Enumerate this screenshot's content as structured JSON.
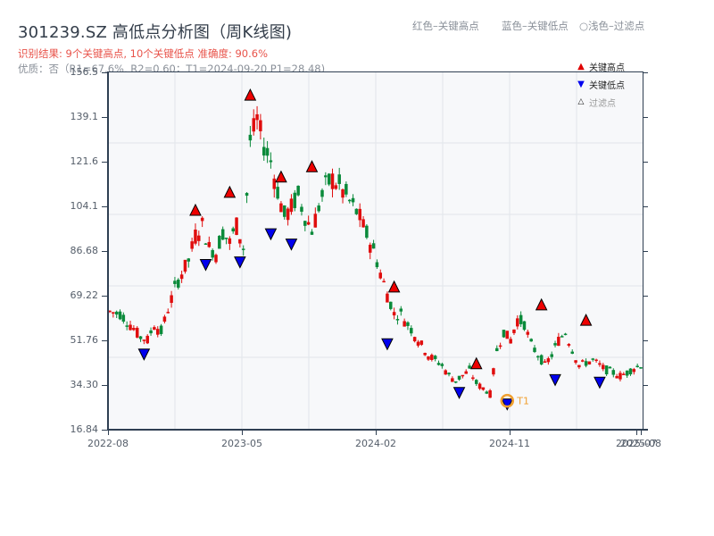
{
  "header": {
    "title": "301239.SZ 高低点分析图（周K线图)",
    "result_line": "识别结果: 9个关键高点, 10个关键低点  准确度: 90.6%",
    "quality_line": "优质：否（R1=67.6%, R2=0.60；T1=2024-09-20 P1=28.48)"
  },
  "top_legend": {
    "red": "红色–关键高点",
    "blue": "蓝色–关键低点",
    "light": "○浅色–过滤点"
  },
  "legend": {
    "items": [
      {
        "label": "关键高点",
        "symbol": "▲",
        "color": "#e00000"
      },
      {
        "label": "关键低点",
        "symbol": "▼",
        "color": "#0000ee"
      },
      {
        "label": "过滤点",
        "symbol": "△",
        "color": "#f4c0c0"
      }
    ]
  },
  "annotation": {
    "label": "T1",
    "color": "#f0a030"
  },
  "colors": {
    "up": "#e00d0d",
    "down": "#0a8a3a",
    "grid": "#e2e5ea",
    "axis": "#2f3f52",
    "plot_bg": "#f7f8fa"
  },
  "chart_data": {
    "type": "candlestick",
    "title": "301239.SZ 高低点分析图（周K线图)",
    "xlabel": "",
    "ylabel": "",
    "ylim": [
      16.84,
      156.5
    ],
    "yticks": [
      "156.5",
      "139.1",
      "121.6",
      "104.1",
      "86.68",
      "69.22",
      "51.76",
      "34.30",
      "16.84"
    ],
    "xticks": [
      "2022-08",
      "2023-05",
      "2024-02",
      "2024-11",
      "2025-07",
      "2025-08"
    ],
    "grid": true,
    "legend_position": "upper right",
    "close_path": [
      [
        0,
        63
      ],
      [
        3,
        62
      ],
      [
        6,
        58
      ],
      [
        9,
        53
      ],
      [
        11,
        52
      ],
      [
        13,
        58
      ],
      [
        15,
        55
      ],
      [
        17,
        64
      ],
      [
        19,
        72
      ],
      [
        21,
        78
      ],
      [
        23,
        83
      ],
      [
        25,
        93
      ],
      [
        27,
        97
      ],
      [
        29,
        88
      ],
      [
        31,
        86
      ],
      [
        33,
        94
      ],
      [
        35,
        90
      ],
      [
        37,
        97
      ],
      [
        39,
        88
      ],
      [
        41,
        130
      ],
      [
        43,
        138
      ],
      [
        45,
        128
      ],
      [
        47,
        122
      ],
      [
        49,
        110
      ],
      [
        51,
        100
      ],
      [
        53,
        104
      ],
      [
        55,
        108
      ],
      [
        57,
        100
      ],
      [
        59,
        95
      ],
      [
        61,
        104
      ],
      [
        63,
        112
      ],
      [
        65,
        115
      ],
      [
        67,
        112
      ],
      [
        69,
        108
      ],
      [
        71,
        104
      ],
      [
        73,
        100
      ],
      [
        75,
        93
      ],
      [
        77,
        87
      ],
      [
        79,
        78
      ],
      [
        81,
        70
      ],
      [
        83,
        62
      ],
      [
        85,
        62
      ],
      [
        87,
        58
      ],
      [
        89,
        54
      ],
      [
        91,
        50
      ],
      [
        93,
        46
      ],
      [
        95,
        44
      ],
      [
        97,
        42
      ],
      [
        99,
        38
      ],
      [
        101,
        36
      ],
      [
        103,
        38
      ],
      [
        105,
        40
      ],
      [
        107,
        35
      ],
      [
        109,
        33
      ],
      [
        111,
        31
      ],
      [
        113,
        48
      ],
      [
        115,
        55
      ],
      [
        117,
        52
      ],
      [
        119,
        60
      ],
      [
        121,
        58
      ],
      [
        123,
        50
      ],
      [
        125,
        46
      ],
      [
        127,
        42
      ],
      [
        129,
        46
      ],
      [
        131,
        52
      ],
      [
        133,
        55
      ],
      [
        135,
        48
      ],
      [
        137,
        42
      ],
      [
        139,
        43
      ],
      [
        141,
        44
      ],
      [
        143,
        42
      ],
      [
        145,
        40
      ],
      [
        147,
        39
      ],
      [
        149,
        38
      ],
      [
        151,
        39
      ],
      [
        153,
        41
      ],
      [
        155,
        42
      ]
    ],
    "key_highs": [
      {
        "i": 25,
        "price": 101
      },
      {
        "i": 35,
        "price": 108
      },
      {
        "i": 41,
        "price": 146
      },
      {
        "i": 50,
        "price": 114
      },
      {
        "i": 59,
        "price": 118
      },
      {
        "i": 83,
        "price": 71
      },
      {
        "i": 107,
        "price": 41
      },
      {
        "i": 126,
        "price": 64
      },
      {
        "i": 139,
        "price": 58
      }
    ],
    "key_lows": [
      {
        "i": 10,
        "price": 48
      },
      {
        "i": 28,
        "price": 83
      },
      {
        "i": 38,
        "price": 84
      },
      {
        "i": 47,
        "price": 95
      },
      {
        "i": 53,
        "price": 91
      },
      {
        "i": 81,
        "price": 52
      },
      {
        "i": 102,
        "price": 33
      },
      {
        "i": 116,
        "price": 28.48
      },
      {
        "i": 130,
        "price": 38
      },
      {
        "i": 143,
        "price": 37
      }
    ],
    "marked_point": {
      "label": "T1",
      "date": "2024-09-20",
      "price": 28.48
    }
  }
}
